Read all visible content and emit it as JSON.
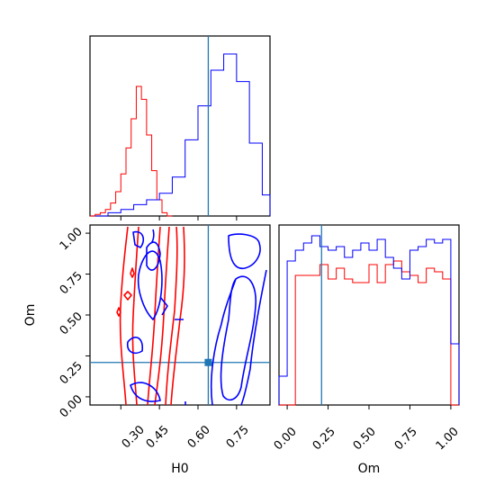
{
  "chart_data": [
    {
      "type": "histogram",
      "panel": "H0 marginal",
      "xlim": [
        0.18,
        0.88
      ],
      "truth": 0.64,
      "series": [
        {
          "name": "",
          "color": "#ff0000",
          "bins": [
            0.18,
            0.2,
            0.22,
            0.24,
            0.26,
            0.28,
            0.3,
            0.32,
            0.34,
            0.36,
            0.38,
            0.4,
            0.42,
            0.44,
            0.46,
            0.48,
            0.5
          ],
          "values": [
            0,
            0.01,
            0.02,
            0.04,
            0.08,
            0.15,
            0.26,
            0.42,
            0.6,
            0.8,
            0.72,
            0.5,
            0.28,
            0.1,
            0.02,
            0,
            0
          ]
        },
        {
          "name": "",
          "color": "#0000ff",
          "bins": [
            0.2,
            0.25,
            0.3,
            0.35,
            0.4,
            0.45,
            0.5,
            0.55,
            0.6,
            0.65,
            0.7,
            0.75,
            0.8,
            0.85,
            0.88
          ],
          "values": [
            0,
            0.02,
            0.04,
            0.07,
            0.1,
            0.14,
            0.24,
            0.47,
            0.68,
            0.9,
            1.0,
            0.83,
            0.45,
            0.13,
            0.08
          ]
        }
      ]
    },
    {
      "type": "contour",
      "panel": "H0 vs Om",
      "xlim": [
        0.18,
        0.88
      ],
      "ylim": [
        -0.05,
        1.05
      ],
      "truth": [
        0.64,
        0.21
      ],
      "series": [
        {
          "name": "",
          "color": "#ff0000",
          "levels": [
            "inner",
            "outer"
          ]
        },
        {
          "name": "",
          "color": "#0000ff",
          "levels": [
            "inner",
            "outer"
          ]
        }
      ]
    },
    {
      "type": "histogram",
      "panel": "Om marginal",
      "xlim": [
        -0.05,
        1.05
      ],
      "truth": 0.21,
      "series": [
        {
          "name": "",
          "color": "#ff0000",
          "bins": [
            -0.05,
            0,
            0.05,
            0.1,
            0.15,
            0.2,
            0.25,
            0.3,
            0.35,
            0.4,
            0.45,
            0.5,
            0.55,
            0.6,
            0.65,
            0.7,
            0.75,
            0.8,
            0.85,
            0.9,
            0.95,
            1.0,
            1.05
          ],
          "values": [
            0,
            0,
            0.72,
            0.72,
            0.72,
            0.78,
            0.7,
            0.76,
            0.7,
            0.68,
            0.68,
            0.78,
            0.68,
            0.78,
            0.8,
            0.74,
            0.72,
            0.68,
            0.76,
            0.74,
            0.7,
            0,
            0
          ]
        },
        {
          "name": "",
          "color": "#0000ff",
          "bins": [
            -0.05,
            0,
            0.05,
            0.1,
            0.15,
            0.2,
            0.25,
            0.3,
            0.35,
            0.4,
            0.45,
            0.5,
            0.55,
            0.6,
            0.65,
            0.7,
            0.75,
            0.8,
            0.85,
            0.9,
            0.95,
            1.0,
            1.05
          ],
          "values": [
            0.16,
            0.8,
            0.86,
            0.9,
            0.94,
            0.88,
            0.86,
            0.88,
            0.82,
            0.86,
            0.9,
            0.86,
            0.92,
            0.82,
            0.76,
            0.7,
            0.86,
            0.88,
            0.92,
            0.9,
            0.92,
            0.34,
            0.34
          ]
        }
      ]
    }
  ],
  "axes": {
    "x_label_left": "H0",
    "x_label_right": "Om",
    "y_label_left": "Om",
    "h0_ticks": [
      "0.30",
      "0.45",
      "0.60",
      "0.75"
    ],
    "om_ticks_x": [
      "0.00",
      "0.25",
      "0.50",
      "0.75",
      "1.00"
    ],
    "om_ticks_y": [
      "0.00",
      "0.25",
      "0.50",
      "0.75",
      "1.00"
    ]
  },
  "colors": {
    "truth": "#1f77b4",
    "red_series": "#ff0000",
    "blue_series": "#0000ff"
  }
}
